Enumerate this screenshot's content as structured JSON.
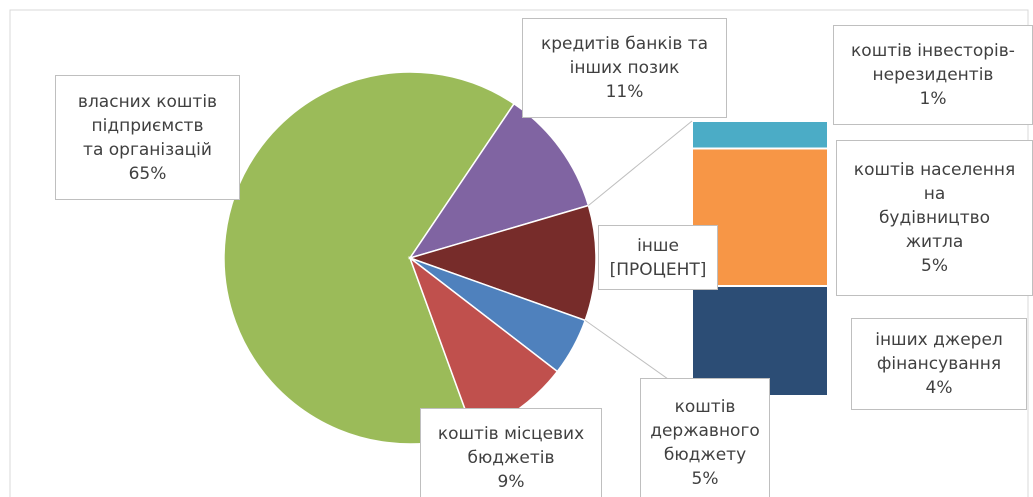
{
  "chart_data": {
    "type": "pie-of-bar",
    "categories": [
      "власних коштів\nпідприємств\nта організацій",
      "кредитів банків та\nінших позик",
      "інше",
      "коштів\nдержавного\nбюджету",
      "коштів місцевих\nбюджетів"
    ],
    "values": [
      65,
      11,
      10,
      5,
      9
    ],
    "value_labels": [
      "65%",
      "11%",
      "[ПРОЦЕНТ]",
      "5%",
      "9%"
    ],
    "colors": [
      "#9bbb59",
      "#8064a2",
      "#772c2a",
      "#4f81bd",
      "#c0504d"
    ],
    "bar_categories": [
      "коштів інвесторів-\nнерезидентів",
      "коштів населення\nна\nбудівництво\nжитла",
      "інших джерел\nфінансування"
    ],
    "bar_values": [
      1,
      5,
      4
    ],
    "bar_value_labels": [
      "1%",
      "5%",
      "4%"
    ],
    "bar_colors": [
      "#4bacc6",
      "#f79646",
      "#2c4d75"
    ]
  }
}
